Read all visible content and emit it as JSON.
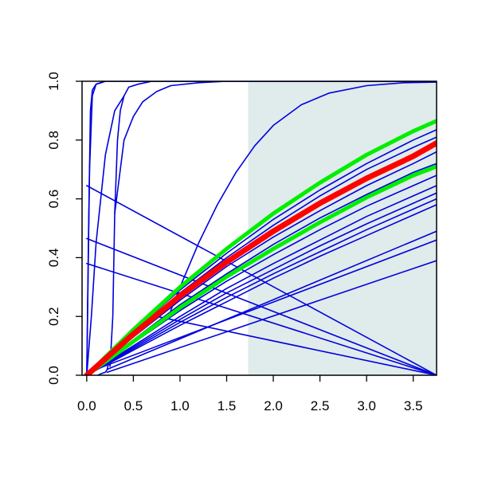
{
  "chart_data": {
    "type": "line",
    "title": "",
    "xlabel": "",
    "ylabel": "",
    "xlim": [
      -0.05,
      3.75
    ],
    "ylim": [
      0,
      1.0
    ],
    "x_ticks": [
      0.0,
      0.5,
      1.0,
      1.5,
      2.0,
      2.5,
      3.0,
      3.5
    ],
    "x_tick_labels": [
      "0.0",
      "0.5",
      "1.0",
      "1.5",
      "2.0",
      "2.5",
      "3.0",
      "3.5"
    ],
    "y_ticks": [
      0.0,
      0.2,
      0.4,
      0.6,
      0.8,
      1.0
    ],
    "y_tick_labels": [
      "0.0",
      "0.2",
      "0.4",
      "0.6",
      "0.8",
      "1.0"
    ],
    "grid": false,
    "legend": "none",
    "shaded_region": {
      "x_from": 1.73,
      "x_to": 3.75,
      "color": "#e0ebeb"
    },
    "colors": {
      "ensemble": "#0000dd",
      "mean": "#ff0000",
      "band": "#00ee00",
      "axis": "#000000"
    },
    "series": [
      {
        "role": "mean",
        "color": "#ff0000",
        "x": [
          0,
          0.5,
          1.0,
          1.5,
          2.0,
          2.5,
          3.0,
          3.5,
          3.75
        ],
        "y": [
          0,
          0.14,
          0.27,
          0.385,
          0.49,
          0.585,
          0.67,
          0.745,
          0.79
        ]
      },
      {
        "role": "band-upper",
        "color": "#00ee00",
        "x": [
          0,
          0.5,
          1.0,
          1.5,
          2.0,
          2.5,
          3.0,
          3.5,
          3.75
        ],
        "y": [
          0,
          0.155,
          0.3,
          0.43,
          0.55,
          0.655,
          0.75,
          0.83,
          0.865
        ]
      },
      {
        "role": "band-lower",
        "color": "#00ee00",
        "x": [
          0,
          0.5,
          1.0,
          1.5,
          2.0,
          2.5,
          3.0,
          3.5,
          3.75
        ],
        "y": [
          0,
          0.115,
          0.23,
          0.335,
          0.43,
          0.52,
          0.605,
          0.68,
          0.71
        ]
      },
      {
        "role": "ensemble",
        "color": "#0000dd",
        "x": [
          0,
          0.5,
          1.0,
          1.5,
          2.0,
          2.5,
          3.0,
          3.5,
          3.75
        ],
        "y": [
          0,
          0.15,
          0.29,
          0.415,
          0.53,
          0.63,
          0.72,
          0.8,
          0.835
        ]
      },
      {
        "role": "ensemble",
        "color": "#0000dd",
        "x": [
          0,
          0.5,
          1.0,
          1.5,
          2.0,
          2.5,
          3.0,
          3.5,
          3.75
        ],
        "y": [
          0,
          0.145,
          0.28,
          0.4,
          0.51,
          0.61,
          0.7,
          0.775,
          0.81
        ]
      },
      {
        "role": "ensemble",
        "color": "#0000dd",
        "x": [
          0,
          0.5,
          1.0,
          1.5,
          2.0,
          2.5,
          3.0,
          3.5,
          3.75
        ],
        "y": [
          0,
          0.13,
          0.255,
          0.37,
          0.47,
          0.56,
          0.645,
          0.72,
          0.76
        ]
      },
      {
        "role": "ensemble",
        "color": "#0000dd",
        "x": [
          0,
          0.5,
          1.0,
          1.5,
          2.0,
          2.5,
          3.0,
          3.5,
          3.75
        ],
        "y": [
          0,
          0.12,
          0.24,
          0.345,
          0.445,
          0.535,
          0.615,
          0.69,
          0.72
        ]
      },
      {
        "role": "ensemble",
        "color": "#0000dd",
        "x": [
          0,
          0.5,
          1.0,
          1.5,
          2.0,
          2.5,
          3.0,
          3.5,
          3.75
        ],
        "y": [
          0,
          0.11,
          0.22,
          0.32,
          0.41,
          0.495,
          0.575,
          0.645,
          0.68
        ]
      },
      {
        "role": "ensemble",
        "color": "#0000dd",
        "x": [
          0,
          0.5,
          1.0,
          1.5,
          2.0,
          2.5,
          3.0,
          3.5,
          3.75
        ],
        "y": [
          0,
          0.1,
          0.2,
          0.295,
          0.38,
          0.46,
          0.54,
          0.61,
          0.645
        ]
      },
      {
        "role": "ensemble",
        "color": "#0000dd",
        "x": [
          0,
          0.5,
          1.0,
          1.5,
          2.0,
          2.5,
          3.0,
          3.5,
          3.75
        ],
        "y": [
          0,
          0.095,
          0.19,
          0.28,
          0.36,
          0.44,
          0.515,
          0.585,
          0.62
        ]
      },
      {
        "role": "ensemble",
        "color": "#0000dd",
        "x": [
          0,
          0.5,
          1.0,
          1.5,
          2.0,
          2.5,
          3.0,
          3.5,
          3.75
        ],
        "y": [
          0,
          0.09,
          0.18,
          0.265,
          0.345,
          0.42,
          0.495,
          0.565,
          0.6
        ]
      },
      {
        "role": "ensemble",
        "color": "#0000dd",
        "x": [
          0,
          0.5,
          1.0,
          1.5,
          2.0,
          2.5,
          3.0,
          3.5,
          3.75
        ],
        "y": [
          0,
          0.085,
          0.17,
          0.25,
          0.33,
          0.405,
          0.475,
          0.545,
          0.58
        ]
      },
      {
        "role": "ensemble",
        "color": "#0000dd",
        "x": [
          0.22,
          3.75
        ],
        "y": [
          0.02,
          0.49
        ]
      },
      {
        "role": "ensemble",
        "color": "#0000dd",
        "x": [
          0.22,
          3.75
        ],
        "y": [
          0.01,
          0.39
        ]
      },
      {
        "role": "ensemble",
        "color": "#0000dd",
        "x": [
          0.1,
          3.75
        ],
        "y": [
          0.02,
          0.46
        ]
      },
      {
        "role": "ensemble",
        "color": "#0000dd",
        "x": [
          0,
          3.75
        ],
        "y": [
          0.645,
          0.0
        ]
      },
      {
        "role": "ensemble",
        "color": "#0000dd",
        "x": [
          0,
          3.75
        ],
        "y": [
          0.465,
          0.0
        ]
      },
      {
        "role": "ensemble",
        "color": "#0000dd",
        "x": [
          0,
          3.75
        ],
        "y": [
          0.38,
          0.0
        ]
      },
      {
        "role": "ensemble",
        "color": "#0000dd",
        "x": [
          0.75,
          3.75
        ],
        "y": [
          0.2,
          0.0
        ]
      },
      {
        "role": "ensemble",
        "color": "#0000dd",
        "x": [
          0,
          0.02,
          0.04,
          0.06,
          0.1,
          0.2,
          0.5,
          3.75
        ],
        "y": [
          0,
          0.5,
          0.9,
          0.97,
          0.99,
          1.0,
          1.0,
          1.0
        ]
      },
      {
        "role": "ensemble",
        "color": "#0000dd",
        "x": [
          0,
          0.03,
          0.06,
          0.1,
          0.2,
          1.0,
          3.75
        ],
        "y": [
          0,
          0.7,
          0.95,
          0.99,
          1.0,
          1.0,
          1.0
        ]
      },
      {
        "role": "ensemble",
        "color": "#0000dd",
        "x": [
          0.0,
          0.05,
          0.1,
          0.2,
          0.3,
          0.4
        ],
        "y": [
          0.0,
          0.2,
          0.45,
          0.75,
          0.9,
          0.95
        ]
      },
      {
        "role": "ensemble",
        "color": "#0000dd",
        "x": [
          0.12,
          0.15,
          0.2,
          0.22,
          0.24
        ],
        "y": [
          0.0,
          0.005,
          0.01,
          0.02,
          0.05
        ]
      },
      {
        "role": "ensemble",
        "color": "#0000dd",
        "x": [
          0.25,
          0.28,
          0.3,
          0.33,
          0.36,
          0.4,
          0.45,
          0.55,
          0.7,
          1.0,
          1.5,
          2.0,
          3.0,
          3.75
        ],
        "y": [
          0.03,
          0.2,
          0.55,
          0.8,
          0.9,
          0.95,
          0.98,
          0.99,
          1.0,
          1.0,
          1.0,
          1.0,
          1.0,
          1.0
        ]
      },
      {
        "role": "ensemble",
        "color": "#0000dd",
        "x": [
          0.3,
          0.4,
          0.5,
          0.6,
          0.75,
          0.9,
          1.2,
          1.5,
          2.0,
          3.0,
          3.75
        ],
        "y": [
          0.55,
          0.8,
          0.88,
          0.93,
          0.965,
          0.985,
          0.995,
          1.0,
          1.0,
          1.0,
          1.0
        ]
      },
      {
        "role": "ensemble",
        "color": "#0000dd",
        "x": [
          0.9,
          1.0,
          1.2,
          1.4,
          1.6,
          1.8,
          2.0,
          2.3,
          2.6,
          3.0,
          3.4,
          3.75
        ],
        "y": [
          0.22,
          0.3,
          0.45,
          0.58,
          0.69,
          0.78,
          0.85,
          0.92,
          0.96,
          0.985,
          0.995,
          0.997
        ]
      }
    ]
  }
}
